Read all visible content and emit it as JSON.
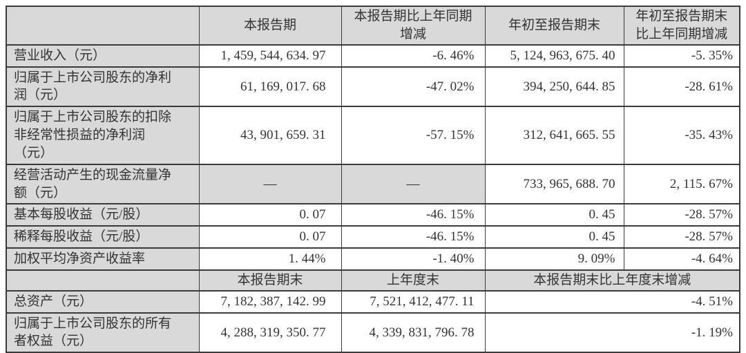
{
  "colors": {
    "shaded_cell_bg": "#d9d9d9",
    "data_cell_bg": "#ffffff",
    "border": "#3a3a3a",
    "text": "#333333"
  },
  "table": {
    "header": {
      "item_column": "",
      "current_period": "本报告期",
      "current_period_yoy": "本报告期比上年同期\n增减",
      "ytd": "年初至报告期末",
      "ytd_yoy": "年初至报告期末\n比上年同期增减"
    },
    "rows": [
      {
        "label": "营业收入（元）",
        "current": "1, 459, 544, 634. 97",
        "yoy": "-6. 46%",
        "ytd": "5, 124, 963, 675. 40",
        "ytd_yoy": "-5. 35%"
      },
      {
        "label": "归属于上市公司股东的净利\n润（元）",
        "current": "61, 169, 017. 68",
        "yoy": "-47. 02%",
        "ytd": "394, 250, 644. 85",
        "ytd_yoy": "-28. 61%"
      },
      {
        "label": "归属于上市公司股东的扣除\n非经常性损益的净利润\n（元）",
        "current": "43, 901, 659. 31",
        "yoy": "-57. 15%",
        "ytd": "312, 641, 665. 55",
        "ytd_yoy": "-35. 43%"
      },
      {
        "label": "经营活动产生的现金流量净\n额（元）",
        "current": "—",
        "yoy": "—",
        "ytd": "733, 965, 688. 70",
        "ytd_yoy": "2, 115. 67%"
      },
      {
        "label": "基本每股收益（元/股）",
        "current": "0. 07",
        "yoy": "-46. 15%",
        "ytd": "0. 45",
        "ytd_yoy": "-28. 57%"
      },
      {
        "label": "稀释每股收益（元/股）",
        "current": "0. 07",
        "yoy": "-46. 15%",
        "ytd": "0. 45",
        "ytd_yoy": "-28. 57%"
      },
      {
        "label": "加权平均净资产收益率",
        "current": "1. 44%",
        "yoy": "-1. 40%",
        "ytd": "9. 09%",
        "ytd_yoy": "-4. 64%"
      }
    ],
    "section2_header": {
      "item_column": "",
      "period_end": "本报告期末",
      "prior_year_end": "上年度末",
      "period_end_change": "本报告期末比上年度末增减"
    },
    "section2_rows": [
      {
        "label": "总资产（元）",
        "period_end": "7, 182, 387, 142. 99",
        "prior_year_end": "7, 521, 412, 477. 11",
        "change": "-4. 51%"
      },
      {
        "label": "归属于上市公司股东的所有\n者权益（元）",
        "period_end": "4, 288, 319, 350. 77",
        "prior_year_end": "4, 339, 831, 796. 78",
        "change": "-1. 19%"
      }
    ]
  }
}
